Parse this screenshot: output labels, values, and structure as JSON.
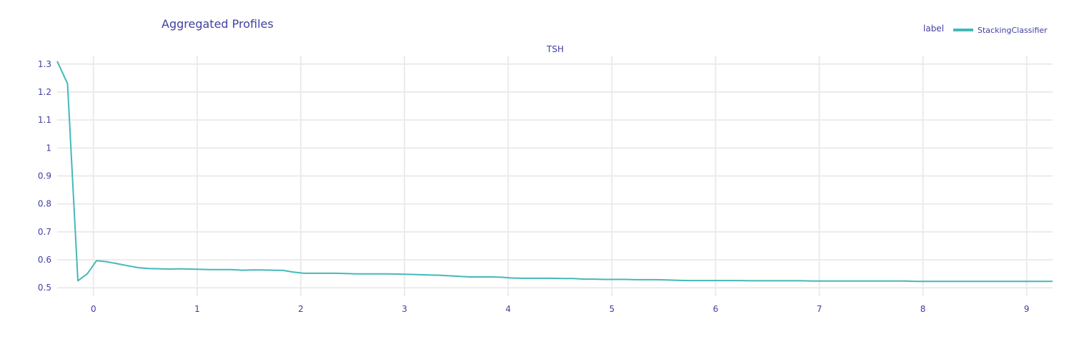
{
  "chart_data": {
    "type": "line",
    "title": "Aggregated Profiles",
    "subtitle": "TSH",
    "legend_title": "label",
    "legend_position": "top-right",
    "xlim": [
      -0.35,
      9.25
    ],
    "ylim": [
      0.47,
      1.33
    ],
    "x_ticks": [
      0,
      1,
      2,
      3,
      4,
      5,
      6,
      7,
      8,
      9
    ],
    "y_ticks": [
      0.5,
      0.6,
      0.7,
      0.8,
      0.9,
      1,
      1.1,
      1.2,
      1.3
    ],
    "x_tick_labels": [
      "0",
      "1",
      "2",
      "3",
      "4",
      "5",
      "6",
      "7",
      "8",
      "9"
    ],
    "y_tick_labels": [
      "0.5",
      "0.6",
      "0.7",
      "0.8",
      "0.9",
      "1",
      "1.1",
      "1.2",
      "1.3"
    ],
    "grid": true,
    "series": [
      {
        "name": "StackingClassifier",
        "color": "#45b8b8",
        "x": [
          -0.35,
          -0.25,
          -0.15,
          -0.06,
          0.03,
          0.13,
          0.23,
          0.33,
          0.43,
          0.53,
          0.63,
          0.73,
          0.83,
          0.93,
          1.03,
          1.13,
          1.23,
          1.33,
          1.43,
          1.53,
          1.63,
          1.73,
          1.83,
          1.93,
          2.03,
          2.13,
          2.23,
          2.33,
          2.43,
          2.53,
          2.63,
          2.73,
          2.83,
          2.93,
          3.03,
          3.13,
          3.23,
          3.33,
          3.43,
          3.53,
          3.63,
          3.73,
          3.83,
          3.93,
          4.03,
          4.13,
          4.23,
          4.33,
          4.43,
          4.53,
          4.63,
          4.73,
          4.83,
          4.93,
          5.03,
          5.13,
          5.23,
          5.33,
          5.43,
          5.53,
          5.63,
          5.73,
          5.83,
          5.93,
          6.03,
          6.13,
          6.23,
          6.33,
          6.43,
          6.53,
          6.63,
          6.73,
          6.83,
          6.93,
          7.03,
          7.13,
          7.23,
          7.33,
          7.43,
          7.53,
          7.63,
          7.73,
          7.83,
          7.93,
          8.03,
          8.13,
          8.23,
          8.33,
          8.43,
          8.53,
          8.63,
          8.73,
          8.83,
          8.93,
          9.03,
          9.13,
          9.25
        ],
        "values": [
          1.31,
          1.23,
          0.525,
          0.55,
          0.597,
          0.593,
          0.586,
          0.579,
          0.572,
          0.569,
          0.568,
          0.567,
          0.568,
          0.567,
          0.566,
          0.565,
          0.565,
          0.565,
          0.563,
          0.564,
          0.564,
          0.563,
          0.562,
          0.556,
          0.552,
          0.552,
          0.552,
          0.552,
          0.551,
          0.55,
          0.55,
          0.55,
          0.55,
          0.549,
          0.548,
          0.547,
          0.546,
          0.545,
          0.543,
          0.541,
          0.539,
          0.539,
          0.539,
          0.538,
          0.535,
          0.534,
          0.534,
          0.534,
          0.534,
          0.533,
          0.533,
          0.531,
          0.531,
          0.53,
          0.53,
          0.53,
          0.529,
          0.529,
          0.529,
          0.528,
          0.527,
          0.526,
          0.526,
          0.526,
          0.526,
          0.526,
          0.526,
          0.525,
          0.525,
          0.525,
          0.525,
          0.525,
          0.525,
          0.524,
          0.524,
          0.524,
          0.524,
          0.524,
          0.524,
          0.524,
          0.524,
          0.524,
          0.524,
          0.523,
          0.523,
          0.523,
          0.523,
          0.523,
          0.523,
          0.523,
          0.523,
          0.523,
          0.523,
          0.523,
          0.523,
          0.523,
          0.523
        ]
      }
    ]
  }
}
